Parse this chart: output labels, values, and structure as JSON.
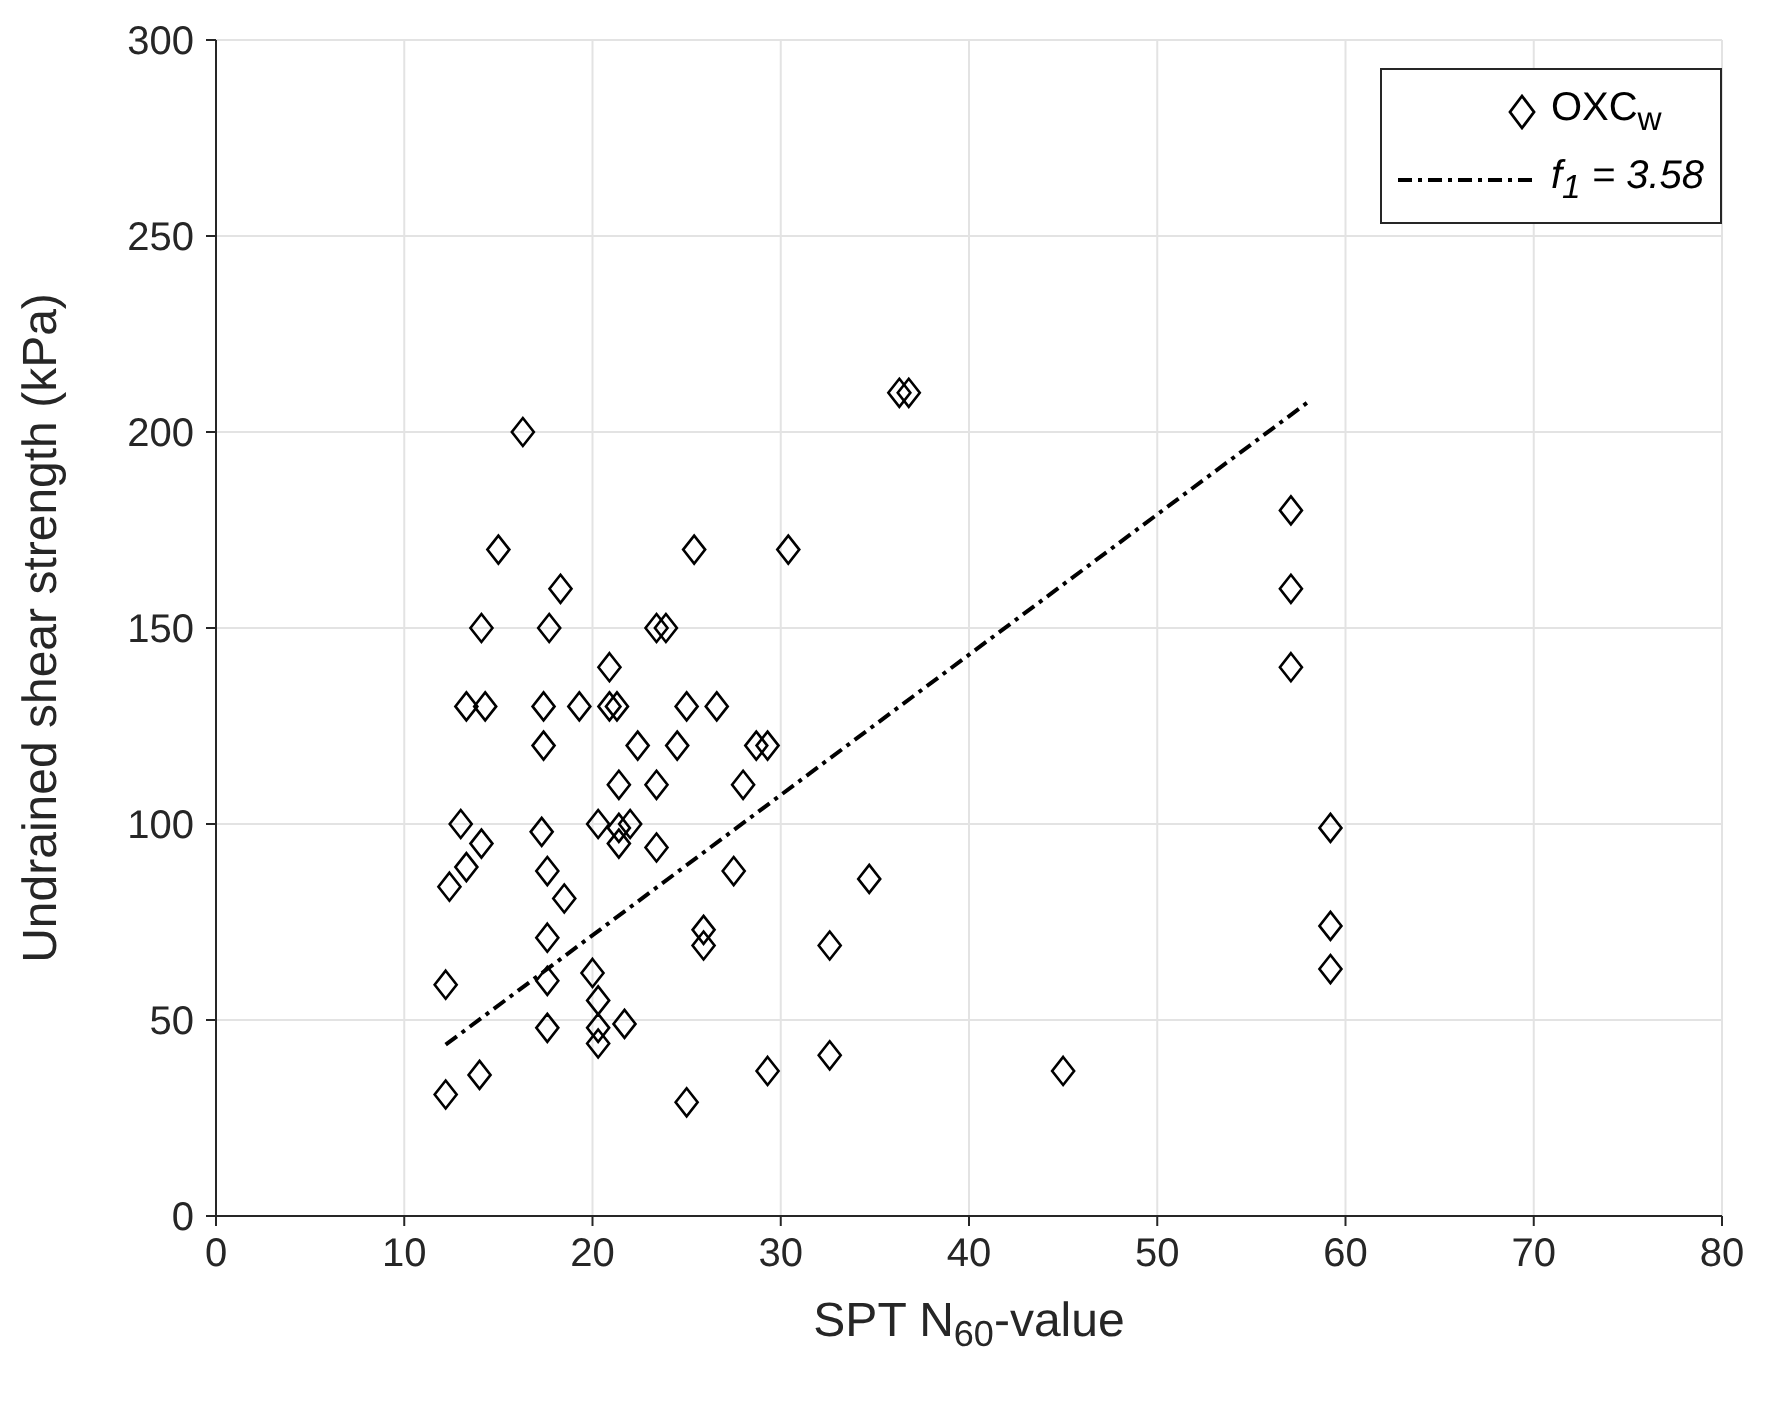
{
  "chart_data": {
    "type": "scatter",
    "xlabel": "SPT N$_{60}$-value",
    "ylabel": "Undrained shear strength (kPa)",
    "xlim": [
      0,
      80
    ],
    "xticks": [
      0,
      10,
      20,
      30,
      40,
      50,
      60,
      70,
      80
    ],
    "ylim": [
      0,
      300
    ],
    "yticks": [
      0,
      50,
      100,
      150,
      200,
      250,
      300
    ],
    "grid": true,
    "legend": "top right",
    "series": [
      {
        "name": "OXC$_{w}$",
        "type": "scatter",
        "marker": "diamond",
        "color": "#000000",
        "x": [
          12.2,
          12.2,
          12.4,
          13.3,
          13.0,
          13.3,
          14.3,
          14.1,
          14.0,
          14.1,
          15.0,
          16.3,
          17.4,
          17.4,
          17.3,
          17.6,
          17.6,
          17.6,
          17.6,
          17.7,
          18.3,
          18.5,
          19.3,
          20.0,
          20.3,
          20.3,
          20.3,
          20.3,
          20.9,
          20.9,
          21.3,
          21.4,
          21.4,
          21.4,
          22.0,
          21.7,
          22.4,
          23.4,
          23.9,
          23.4,
          23.4,
          24.5,
          25.0,
          25.0,
          25.4,
          25.9,
          25.9,
          26.6,
          27.5,
          28.0,
          28.7,
          29.3,
          29.3,
          30.4,
          32.6,
          32.6,
          34.7,
          36.3,
          36.8,
          45.0,
          57.1,
          57.1,
          57.1,
          59.2,
          59.2,
          59.2
        ],
        "values": [
          31,
          59,
          84,
          89,
          100,
          130,
          130,
          95,
          36,
          150,
          170,
          200,
          130,
          120,
          98,
          88,
          71,
          60,
          48,
          150,
          160,
          81,
          130,
          62,
          100,
          55,
          48,
          44,
          140,
          130,
          130,
          110,
          99,
          95,
          100,
          49,
          120,
          150,
          150,
          110,
          94,
          120,
          130,
          29,
          170,
          73,
          69,
          130,
          88,
          110,
          120,
          120,
          37,
          170,
          69,
          41,
          86,
          210,
          210,
          37,
          180,
          160,
          140,
          99,
          74,
          63
        ]
      },
      {
        "name": "f$_{1}$ = 3.58",
        "type": "line",
        "marker": "none",
        "line_style": "dashed",
        "color": "#000000",
        "x": [
          12.2,
          58
        ],
        "values": [
          43.7,
          207.6
        ]
      }
    ]
  }
}
